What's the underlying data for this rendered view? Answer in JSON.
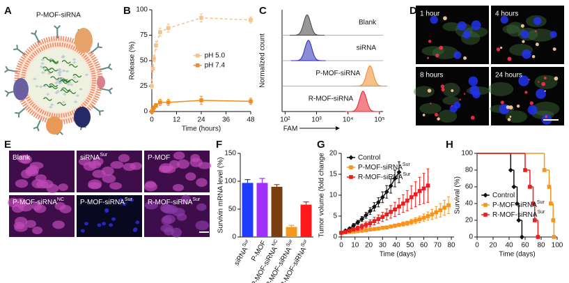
{
  "panels": {
    "A": {
      "label": "A",
      "title": "P-MOF-siRNA"
    },
    "D": {
      "label": "D",
      "images": [
        "1 hour",
        "4 hours",
        "8 hours",
        "24 hours"
      ]
    },
    "E": {
      "label": "E",
      "images": [
        {
          "text": "Blank"
        },
        {
          "text": "siRNA",
          "sup": "Sur"
        },
        {
          "text": "P-MOF"
        },
        {
          "text": "P-MOF-siRNA",
          "sup": "NC"
        },
        {
          "text": "P-MOF-siRNA",
          "sup": "Sur"
        },
        {
          "text": "R-MOF-siRNA",
          "sup": "Sur"
        }
      ]
    }
  },
  "chart_data": [
    {
      "type": "line",
      "panel": "B",
      "xlabel": "Time (hours)",
      "ylabel": "Release (%)",
      "xlim": [
        0,
        48
      ],
      "ylim": [
        0,
        100
      ],
      "xticks": [
        0,
        12,
        24,
        36,
        48
      ],
      "yticks": [
        0,
        25,
        50,
        75,
        100
      ],
      "legend": "center right",
      "series": [
        {
          "name": "pH 5.0",
          "color": "#f7c28c",
          "dashed": true,
          "marker": "square",
          "x": [
            0,
            0.5,
            1,
            2,
            4,
            8,
            24,
            48
          ],
          "values": [
            25,
            42,
            52,
            65,
            78,
            82,
            92,
            90
          ],
          "errors": [
            3,
            3,
            3,
            4,
            4,
            4,
            4,
            3
          ]
        },
        {
          "name": "pH 7.4",
          "color": "#f28a1c",
          "dashed": false,
          "marker": "square",
          "x": [
            0,
            0.5,
            1,
            2,
            4,
            8,
            24,
            48
          ],
          "values": [
            0,
            2,
            4,
            6,
            9,
            9,
            11,
            10
          ],
          "errors": [
            1,
            1,
            1,
            2,
            3,
            3,
            4,
            3
          ]
        }
      ]
    },
    {
      "type": "flow",
      "panel": "C",
      "xlabel": "FAM",
      "ylabel": "Normalized count",
      "xscale": "log",
      "xlim": [
        80,
        130000
      ],
      "xticks": [
        {
          "value": 100,
          "label": "10²"
        },
        {
          "value": 1000,
          "label": "10³"
        },
        {
          "value": 10000,
          "label": "10⁴"
        },
        {
          "value": 100000,
          "label": "10⁵"
        }
      ],
      "series": [
        {
          "name": "Blank",
          "color": "#444444",
          "peak": 500
        },
        {
          "name": "siRNA",
          "color": "#2b2bb8",
          "peak": 550
        },
        {
          "name": "P-MOF-siRNA",
          "color": "#f08a2a",
          "peak": 50000
        },
        {
          "name": "R-MOF-siRNA",
          "color": "#e8202a",
          "peak": 30000
        }
      ]
    },
    {
      "type": "bar",
      "panel": "F",
      "ylabel": "Survivin mRNA level (%)",
      "ylim": [
        0,
        150
      ],
      "yticks": [
        0,
        50,
        100,
        150
      ],
      "categories": [
        "siRNA",
        "P-MOF",
        "P-MOF-siRNA",
        "P-MOF-siRNA",
        "R-MOF-siRNA"
      ],
      "category_sups": [
        "Sur",
        null,
        "NC",
        "Sur",
        "Sur"
      ],
      "values": [
        97,
        97,
        90,
        18,
        58
      ],
      "errors": [
        6,
        8,
        4,
        3,
        5
      ],
      "colors": [
        "#1f3bff",
        "#a030ff",
        "#7a3e12",
        "#f39a1e",
        "#ff1a1a"
      ]
    },
    {
      "type": "line",
      "panel": "G",
      "xlabel": "Time (days)",
      "ylabel": "Tumor volume (fold change",
      "xlim": [
        0,
        82
      ],
      "ylim": [
        0,
        20
      ],
      "xticks": [
        0,
        10,
        20,
        30,
        40,
        50,
        60,
        70,
        80
      ],
      "yticks": [
        0,
        5,
        10,
        15,
        20
      ],
      "legend": "upper left",
      "series": [
        {
          "name": "Control",
          "color": "#111111",
          "dashed": false,
          "marker": "diamond",
          "x": [
            0,
            3,
            6,
            9,
            12,
            15,
            18,
            21,
            24,
            27,
            30,
            33,
            36,
            39,
            42
          ],
          "values": [
            1,
            1.5,
            2,
            2.8,
            3.5,
            4.3,
            5.2,
            6.2,
            7.2,
            8.3,
            9.5,
            10.8,
            12.2,
            14,
            15.5
          ],
          "errors": [
            0.1,
            0.2,
            0.3,
            0.4,
            0.5,
            0.6,
            0.7,
            0.8,
            1,
            1.1,
            1.3,
            1.5,
            1.7,
            2,
            2.5
          ]
        },
        {
          "name": "P-MOF-siRNA",
          "name_sup": "Sur",
          "color": "#f7941d",
          "dashed": false,
          "marker": "square",
          "x": [
            0,
            3,
            6,
            9,
            12,
            15,
            18,
            21,
            24,
            27,
            30,
            33,
            36,
            39,
            42,
            45,
            48,
            51,
            54,
            57,
            60,
            63,
            66,
            69,
            72,
            75,
            78
          ],
          "values": [
            1,
            1.1,
            1.2,
            1.3,
            1.4,
            1.5,
            1.6,
            1.8,
            1.9,
            2,
            2.2,
            2.3,
            2.5,
            2.7,
            2.9,
            3.1,
            3.3,
            3.6,
            3.9,
            4.2,
            4.6,
            5,
            5.4,
            5.9,
            6.4,
            7,
            7.6
          ],
          "errors": [
            0.1,
            0.1,
            0.1,
            0.1,
            0.1,
            0.1,
            0.1,
            0.15,
            0.15,
            0.2,
            0.2,
            0.3,
            0.3,
            0.4,
            0.4,
            0.5,
            0.5,
            0.6,
            0.7,
            0.8,
            0.9,
            1,
            1.2,
            1.4,
            1.6,
            1.8,
            2
          ]
        },
        {
          "name": "R-MOF-siRNA",
          "name_sup": "Sur",
          "color": "#ee1c1c",
          "dashed": false,
          "marker": "square",
          "x": [
            0,
            3,
            6,
            9,
            12,
            15,
            18,
            21,
            24,
            27,
            30,
            33,
            36,
            39,
            42,
            45,
            48,
            51,
            54,
            57,
            60,
            63
          ],
          "values": [
            1,
            1.2,
            1.5,
            1.8,
            2.1,
            2.5,
            2.9,
            3.3,
            3.8,
            4.3,
            4.8,
            5.4,
            6,
            6.6,
            7.3,
            8,
            8.7,
            9.5,
            10.2,
            11,
            11.6,
            12.3
          ],
          "errors": [
            0.1,
            0.2,
            0.3,
            0.4,
            0.5,
            0.6,
            0.7,
            0.8,
            0.9,
            1,
            1.1,
            1.3,
            1.5,
            1.7,
            1.9,
            2.1,
            2.4,
            2.7,
            3,
            3.3,
            3.6,
            4
          ]
        }
      ]
    },
    {
      "type": "step",
      "panel": "H",
      "xlabel": "Time (days)",
      "ylabel": "Survival (%)",
      "xlim": [
        0,
        100
      ],
      "ylim": [
        0,
        100
      ],
      "xticks": [
        0,
        20,
        40,
        60,
        80,
        100
      ],
      "yticks": [
        0,
        20,
        40,
        60,
        80,
        100
      ],
      "legend": "lower left",
      "series": [
        {
          "name": "Control",
          "color": "#111111",
          "marker": "diamond",
          "x": [
            0,
            42,
            46,
            50,
            52,
            56
          ],
          "values": [
            100,
            80,
            60,
            40,
            20,
            0
          ]
        },
        {
          "name": "P-MOF-siRNA",
          "name_sup": "Sur",
          "color": "#f7941d",
          "marker": "square",
          "x": [
            0,
            84,
            90,
            92,
            95,
            96
          ],
          "values": [
            100,
            80,
            60,
            40,
            20,
            0
          ]
        },
        {
          "name": "R-MOF-siRNA",
          "name_sup": "Sur",
          "color": "#ee1c1c",
          "marker": "square",
          "x": [
            0,
            60,
            66,
            70,
            72,
            76
          ],
          "values": [
            100,
            80,
            60,
            40,
            20,
            0
          ]
        }
      ]
    }
  ]
}
